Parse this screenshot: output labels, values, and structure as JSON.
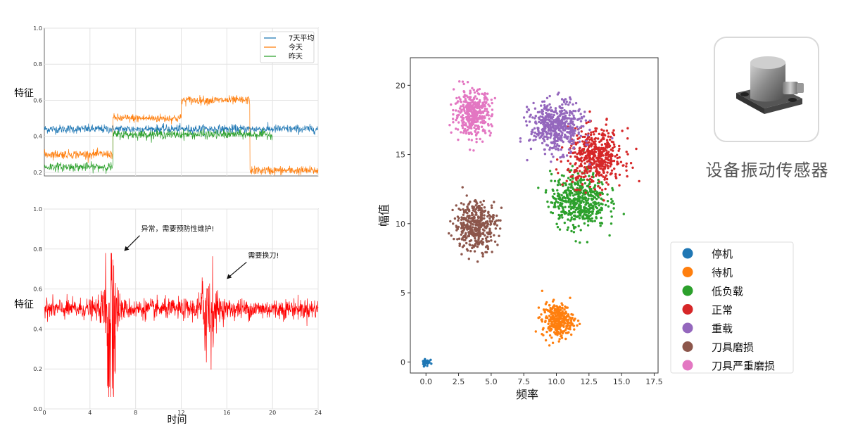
{
  "colors": {
    "avg7": "#1f77b4",
    "today": "#ff7f0e",
    "yesterday": "#2ca02c",
    "anomaly": "#ff0000",
    "stop": "#1f77b4",
    "standby": "#ff7f0e",
    "lowload": "#2ca02c",
    "normal": "#d62728",
    "heavy": "#9467bd",
    "toolwear": "#8c564b",
    "toolwear_severe": "#e377c2"
  },
  "sensor": {
    "caption": "设备振动传感器",
    "icon": "vibration-sensor-icon"
  },
  "chart_data": [
    {
      "type": "line",
      "id": "feature-compare",
      "ylabel": "特征",
      "xlim": [
        0,
        24
      ],
      "ylim": [
        0.18,
        1.0
      ],
      "yticks": [
        "0.2",
        "0.4",
        "0.6",
        "0.8",
        "1.0"
      ],
      "ytick_values": [
        0.2,
        0.4,
        0.6,
        0.8,
        1.0
      ],
      "xgrid": [
        4,
        8,
        12,
        16,
        20,
        24
      ],
      "series": [
        {
          "name": "7天平均",
          "color_key": "avg7",
          "segments": [
            [
              0,
              24,
              0.44
            ]
          ],
          "noise": 0.012
        },
        {
          "name": "今天",
          "color_key": "today",
          "segments": [
            [
              0,
              6,
              0.3
            ],
            [
              6,
              12,
              0.5
            ],
            [
              12,
              18,
              0.6
            ],
            [
              18,
              24,
              0.21
            ]
          ],
          "noise": 0.012
        },
        {
          "name": "昨天",
          "color_key": "yesterday",
          "segments": [
            [
              0,
              6,
              0.23
            ],
            [
              6,
              20,
              0.41
            ]
          ],
          "noise": 0.012
        }
      ]
    },
    {
      "type": "line",
      "id": "feature-anomaly",
      "xlabel": "时间",
      "ylabel": "特征",
      "xlim": [
        0,
        24
      ],
      "ylim": [
        0.0,
        1.0
      ],
      "xticks": [
        "0",
        "4",
        "8",
        "12",
        "16",
        "20",
        "24"
      ],
      "xtick_values": [
        0,
        4,
        8,
        12,
        16,
        20,
        24
      ],
      "yticks": [
        "0.0",
        "0.2",
        "0.4",
        "0.6",
        "0.8",
        "1.0"
      ],
      "ytick_values": [
        0.0,
        0.2,
        0.4,
        0.6,
        0.8,
        1.0
      ],
      "series": [
        {
          "name": "特征",
          "color_key": "anomaly",
          "base": 0.5,
          "noise": 0.025,
          "bursts": [
            [
              4,
              7,
              0.15,
              0.35
            ],
            [
              12,
              16,
              0.06,
              0.11
            ]
          ]
        }
      ],
      "annotations": [
        {
          "text": "异常，需要预防性维护!",
          "point": [
            7,
            0.79
          ]
        },
        {
          "text": "需要换刀!",
          "point": [
            16,
            0.65
          ]
        }
      ]
    },
    {
      "type": "scatter",
      "id": "freq-amp-clusters",
      "xlabel": "频率",
      "ylabel": "幅值",
      "xlim": [
        -1.2,
        17.8
      ],
      "ylim": [
        -0.8,
        22.0
      ],
      "xticks": [
        "0.0",
        "2.5",
        "5.0",
        "7.5",
        "10.0",
        "12.5",
        "15.0",
        "17.5"
      ],
      "xtick_values": [
        0,
        2.5,
        5,
        7.5,
        10,
        12.5,
        15,
        17.5
      ],
      "yticks": [
        "0",
        "5",
        "10",
        "15",
        "20"
      ],
      "ytick_values": [
        0,
        5,
        10,
        15,
        20
      ],
      "clusters": [
        {
          "name": "停机",
          "color_key": "stop",
          "center": [
            0.0,
            0.0
          ],
          "spread": [
            0.15,
            0.15
          ],
          "count": 40
        },
        {
          "name": "待机",
          "color_key": "standby",
          "center": [
            10.1,
            3.0
          ],
          "spread": [
            0.6,
            0.6
          ],
          "count": 300
        },
        {
          "name": "低负载",
          "color_key": "lowload",
          "center": [
            11.7,
            11.7
          ],
          "spread": [
            1.05,
            1.0
          ],
          "count": 500
        },
        {
          "name": "正常",
          "color_key": "normal",
          "center": [
            13.0,
            14.8
          ],
          "spread": [
            1.05,
            1.0
          ],
          "count": 500
        },
        {
          "name": "重载",
          "color_key": "heavy",
          "center": [
            10.0,
            17.0
          ],
          "spread": [
            1.0,
            0.9
          ],
          "count": 500
        },
        {
          "name": "刀具磨损",
          "color_key": "toolwear",
          "center": [
            3.8,
            9.9
          ],
          "spread": [
            0.8,
            0.9
          ],
          "count": 400
        },
        {
          "name": "刀具严重磨损",
          "color_key": "toolwear_severe",
          "center": [
            3.6,
            18.0
          ],
          "spread": [
            0.7,
            0.8
          ],
          "count": 400
        }
      ]
    }
  ]
}
